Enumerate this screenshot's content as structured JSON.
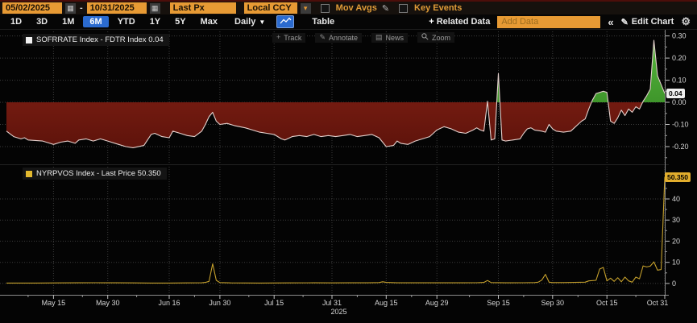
{
  "toolbar": {
    "date_from": "05/02/2025",
    "date_separator": "-",
    "date_to": "10/31/2025",
    "price_field": "Last Px",
    "currency_field": "Local CCY",
    "mov_avgs": "Mov Avgs",
    "key_events": "Key Events"
  },
  "nav": {
    "ranges": [
      "1D",
      "3D",
      "1M",
      "6M",
      "YTD",
      "1Y",
      "5Y",
      "Max"
    ],
    "active_range": "6M",
    "frequency": "Daily",
    "table": "Table",
    "related_data": "Related Data",
    "add_data_placeholder": "Add Data",
    "collapse": "«",
    "edit_chart": "Edit Chart"
  },
  "chart_tools": {
    "track": "Track",
    "annotate": "Annotate",
    "news": "News",
    "zoom": "Zoom"
  },
  "panels": {
    "upper": {
      "legend": "SOFRRATE Index - FDTR Index 0.04",
      "last_tag": "0.04",
      "swatch_color": "#f2f2f2"
    },
    "lower": {
      "legend": "NYRPVOS Index - Last Price 50.350",
      "last_tag": "50.350",
      "swatch_color": "#e3b92f"
    }
  },
  "colors": {
    "accent_orange": "#e79a34",
    "active_blue": "#2b6bd0",
    "fill_negative": "#7d1e13",
    "fill_positive": "#3f9428",
    "upper_line": "#e3d0cc",
    "lower_line": "#c5a02c",
    "grid": "#3c3c3c",
    "axis": "#8a8a8a",
    "tick_label": "#d6d6d6"
  },
  "chart_data": {
    "type": "line",
    "x_axis": {
      "start_date": "2025-05-02",
      "end_date": "2025-10-31",
      "unit": "days-since-start",
      "year_label": "2025",
      "ticks": [
        [
          13,
          "May 15"
        ],
        [
          28,
          "May 30"
        ],
        [
          45,
          "Jun 16"
        ],
        [
          59,
          "Jun 30"
        ],
        [
          74,
          "Jul 15"
        ],
        [
          90,
          "Jul 31"
        ],
        [
          105,
          "Aug 15"
        ],
        [
          119,
          "Aug 29"
        ],
        [
          136,
          "Sep 15"
        ],
        [
          151,
          "Sep 30"
        ],
        [
          166,
          "Oct 15"
        ],
        [
          182,
          "Oct 31"
        ]
      ],
      "minor_tick_days": [
        6,
        21,
        36,
        52,
        67,
        82,
        97,
        112,
        128,
        143,
        158,
        174
      ]
    },
    "panels": [
      {
        "name": "SOFRRATE Index - FDTR Index",
        "type": "area",
        "last_value": 0.04,
        "ylim": [
          -0.28,
          0.324
        ],
        "yticks": [
          [
            0.3,
            "0.30"
          ],
          [
            0.2,
            "0.20"
          ],
          [
            0.1,
            "0.10"
          ],
          [
            0.0,
            "0.00"
          ],
          [
            -0.1,
            "-0.10"
          ],
          [
            -0.2,
            "-0.20"
          ]
        ],
        "y_minor": [
          0.25,
          0.15,
          0.05,
          -0.05,
          -0.15,
          -0.25
        ],
        "points": [
          [
            0,
            -0.13
          ],
          [
            2,
            -0.155
          ],
          [
            4,
            -0.165
          ],
          [
            5,
            -0.16
          ],
          [
            6,
            -0.17
          ],
          [
            10,
            -0.175
          ],
          [
            12,
            -0.185
          ],
          [
            13,
            -0.19
          ],
          [
            15,
            -0.18
          ],
          [
            17,
            -0.175
          ],
          [
            19,
            -0.185
          ],
          [
            20,
            -0.17
          ],
          [
            22,
            -0.165
          ],
          [
            24,
            -0.175
          ],
          [
            26,
            -0.165
          ],
          [
            28,
            -0.175
          ],
          [
            31,
            -0.19
          ],
          [
            33,
            -0.2
          ],
          [
            35,
            -0.205
          ],
          [
            38,
            -0.195
          ],
          [
            40,
            -0.145
          ],
          [
            41,
            -0.14
          ],
          [
            43,
            -0.155
          ],
          [
            45,
            -0.16
          ],
          [
            46,
            -0.13
          ],
          [
            48,
            -0.14
          ],
          [
            50,
            -0.15
          ],
          [
            52,
            -0.155
          ],
          [
            54,
            -0.13
          ],
          [
            55,
            -0.1
          ],
          [
            56,
            -0.065
          ],
          [
            57,
            -0.045
          ],
          [
            58,
            -0.085
          ],
          [
            59,
            -0.1
          ],
          [
            61,
            -0.095
          ],
          [
            63,
            -0.105
          ],
          [
            66,
            -0.115
          ],
          [
            68,
            -0.125
          ],
          [
            70,
            -0.135
          ],
          [
            72,
            -0.14
          ],
          [
            74,
            -0.145
          ],
          [
            76,
            -0.165
          ],
          [
            77,
            -0.17
          ],
          [
            79,
            -0.155
          ],
          [
            81,
            -0.15
          ],
          [
            83,
            -0.155
          ],
          [
            85,
            -0.145
          ],
          [
            87,
            -0.155
          ],
          [
            89,
            -0.15
          ],
          [
            91,
            -0.155
          ],
          [
            93,
            -0.15
          ],
          [
            95,
            -0.145
          ],
          [
            97,
            -0.155
          ],
          [
            99,
            -0.15
          ],
          [
            101,
            -0.145
          ],
          [
            103,
            -0.16
          ],
          [
            105,
            -0.2
          ],
          [
            107,
            -0.195
          ],
          [
            108,
            -0.175
          ],
          [
            109,
            -0.185
          ],
          [
            111,
            -0.19
          ],
          [
            113,
            -0.175
          ],
          [
            115,
            -0.165
          ],
          [
            117,
            -0.155
          ],
          [
            119,
            -0.125
          ],
          [
            121,
            -0.11
          ],
          [
            123,
            -0.12
          ],
          [
            125,
            -0.135
          ],
          [
            127,
            -0.14
          ],
          [
            129,
            -0.125
          ],
          [
            130,
            -0.115
          ],
          [
            131,
            -0.125
          ],
          [
            132,
            -0.13
          ],
          [
            133,
            0.005
          ],
          [
            134,
            -0.17
          ],
          [
            135,
            -0.165
          ],
          [
            136,
            0.13
          ],
          [
            137,
            -0.17
          ],
          [
            138,
            -0.175
          ],
          [
            140,
            -0.17
          ],
          [
            142,
            -0.165
          ],
          [
            143,
            -0.14
          ],
          [
            144,
            -0.12
          ],
          [
            145,
            -0.115
          ],
          [
            146,
            -0.125
          ],
          [
            148,
            -0.13
          ],
          [
            149,
            -0.135
          ],
          [
            150,
            -0.1
          ],
          [
            151,
            -0.12
          ],
          [
            152,
            -0.13
          ],
          [
            154,
            -0.135
          ],
          [
            156,
            -0.13
          ],
          [
            157,
            -0.115
          ],
          [
            158,
            -0.1
          ],
          [
            159,
            -0.085
          ],
          [
            160,
            -0.075
          ],
          [
            161,
            -0.03
          ],
          [
            162,
            0.01
          ],
          [
            163,
            0.04
          ],
          [
            165,
            0.05
          ],
          [
            166,
            0.045
          ],
          [
            167,
            -0.085
          ],
          [
            168,
            -0.095
          ],
          [
            169,
            -0.07
          ],
          [
            170,
            -0.035
          ],
          [
            171,
            -0.06
          ],
          [
            172,
            -0.03
          ],
          [
            173,
            -0.045
          ],
          [
            174,
            -0.02
          ],
          [
            175,
            -0.03
          ],
          [
            176,
            0.005
          ],
          [
            177,
            0.03
          ],
          [
            178,
            0.06
          ],
          [
            179,
            0.28
          ],
          [
            180,
            0.12
          ],
          [
            182,
            0.04
          ]
        ]
      },
      {
        "name": "NYRPVOS Index",
        "type": "line",
        "last_value": 50.35,
        "ylim": [
          -5,
          56
        ],
        "yticks": [
          [
            40,
            "40"
          ],
          [
            30,
            "30"
          ],
          [
            20,
            "20"
          ],
          [
            10,
            "10"
          ],
          [
            0,
            "0"
          ]
        ],
        "y_minor": [
          45,
          35,
          25,
          15,
          5
        ],
        "points": [
          [
            0,
            0.2
          ],
          [
            8,
            0.2
          ],
          [
            15,
            0.25
          ],
          [
            20,
            0.3
          ],
          [
            25,
            0.35
          ],
          [
            30,
            0.3
          ],
          [
            35,
            0.25
          ],
          [
            40,
            0.2
          ],
          [
            45,
            0.2
          ],
          [
            50,
            0.25
          ],
          [
            54,
            0.3
          ],
          [
            55,
            0.5
          ],
          [
            56,
            1.0
          ],
          [
            57,
            9.3
          ],
          [
            58,
            1.5
          ],
          [
            59,
            0.4
          ],
          [
            62,
            0.25
          ],
          [
            70,
            0.2
          ],
          [
            78,
            0.25
          ],
          [
            85,
            0.3
          ],
          [
            90,
            0.25
          ],
          [
            95,
            0.3
          ],
          [
            100,
            0.3
          ],
          [
            103,
            0.4
          ],
          [
            104,
            0.8
          ],
          [
            105,
            0.5
          ],
          [
            108,
            0.3
          ],
          [
            114,
            0.3
          ],
          [
            120,
            0.3
          ],
          [
            126,
            0.3
          ],
          [
            130,
            0.35
          ],
          [
            131,
            0.4
          ],
          [
            132,
            0.5
          ],
          [
            133,
            1.4
          ],
          [
            134,
            0.4
          ],
          [
            138,
            0.3
          ],
          [
            143,
            0.35
          ],
          [
            146,
            0.4
          ],
          [
            147,
            0.6
          ],
          [
            148,
            1.6
          ],
          [
            149,
            4.3
          ],
          [
            150,
            0.6
          ],
          [
            151,
            0.4
          ],
          [
            154,
            0.4
          ],
          [
            157,
            0.5
          ],
          [
            160,
            0.6
          ],
          [
            161,
            1.2
          ],
          [
            163,
            1.5
          ],
          [
            164,
            6.8
          ],
          [
            165,
            7.6
          ],
          [
            166,
            1.2
          ],
          [
            167,
            2.5
          ],
          [
            168,
            1.0
          ],
          [
            169,
            2.7
          ],
          [
            170,
            0.8
          ],
          [
            171,
            3.0
          ],
          [
            172,
            1.2
          ],
          [
            173,
            0.6
          ],
          [
            174,
            3.0
          ],
          [
            175,
            2.2
          ],
          [
            176,
            8.3
          ],
          [
            177,
            7.8
          ],
          [
            178,
            8.2
          ],
          [
            179,
            10.2
          ],
          [
            180,
            6.3
          ],
          [
            181,
            6.6
          ],
          [
            182,
            50.35
          ]
        ]
      }
    ]
  }
}
